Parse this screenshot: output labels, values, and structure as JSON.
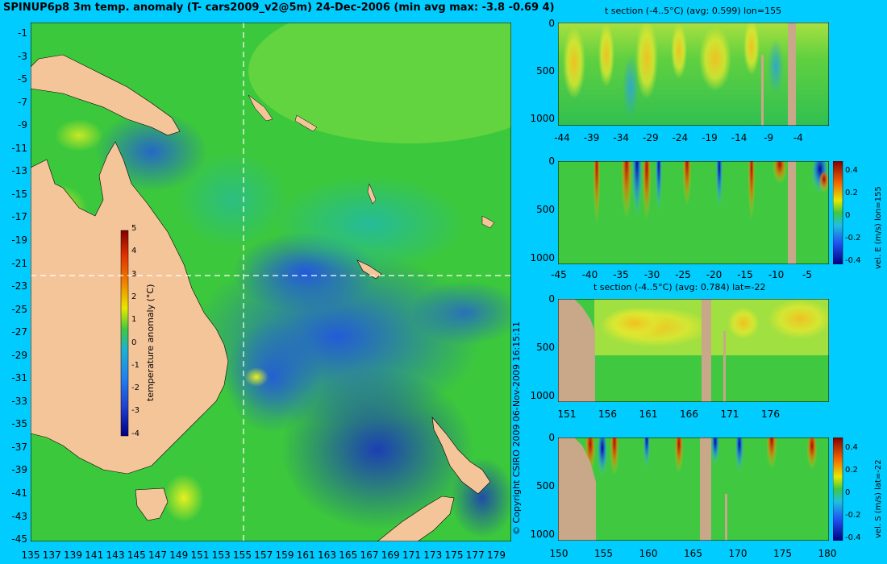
{
  "main_title": "SPINUP6p8 3m temp. anomaly (T- cars2009_v2@5m) 24-Dec-2006 (min avg max: -3.8 -0.69 4)",
  "copyright": "© Copyright CSIRO 2009   06-Nov-2009 16:15:11",
  "colors": {
    "background": "#00ccff",
    "land": "#f5c59a",
    "land_section": "#c8a888",
    "ocean_base": "#3cc83c"
  },
  "chart_data": [
    {
      "type": "heatmap",
      "panel": "map",
      "x_ticks": [
        "135",
        "137",
        "139",
        "141",
        "143",
        "145",
        "147",
        "149",
        "151",
        "153",
        "155",
        "157",
        "159",
        "161",
        "163",
        "165",
        "167",
        "169",
        "171",
        "173",
        "175",
        "177",
        "179"
      ],
      "y_ticks": [
        "-1",
        "-3",
        "-5",
        "-7",
        "-9",
        "-11",
        "-13",
        "-15",
        "-17",
        "-19",
        "-21",
        "-23",
        "-25",
        "-27",
        "-29",
        "-31",
        "-33",
        "-35",
        "-37",
        "-39",
        "-41",
        "-43",
        "-45"
      ],
      "xlim": [
        135,
        180
      ],
      "ylim": [
        -45,
        0
      ],
      "section_lon": 155,
      "section_lat": -22,
      "colorbar": {
        "label": "temperature anomaly (°C)",
        "ticks": [
          "5",
          "4",
          "3",
          "2",
          "1",
          "0",
          "-1",
          "-2",
          "-3",
          "-4"
        ],
        "range": [
          -4,
          5
        ]
      }
    },
    {
      "type": "heatmap",
      "panel": "t-section-lon",
      "title": "t section (-4..5°C) (avg: 0.599) lon=155",
      "x_ticks": [
        "-44",
        "-39",
        "-34",
        "-29",
        "-24",
        "-19",
        "-14",
        "-9",
        "-4"
      ],
      "y_ticks": [
        "0",
        "500",
        "1000"
      ]
    },
    {
      "type": "heatmap",
      "panel": "velE-section-lon",
      "x_ticks": [
        "-45",
        "-40",
        "-35",
        "-30",
        "-25",
        "-20",
        "-15",
        "-10",
        "-5"
      ],
      "y_ticks": [
        "0",
        "500",
        "1000"
      ],
      "colorbar": {
        "label": "vel. E (m/s) lon=155",
        "ticks": [
          "0.4",
          "0.2",
          "0",
          "-0.2",
          "-0.4"
        ]
      }
    },
    {
      "type": "heatmap",
      "panel": "t-section-lat",
      "title": "t section (-4..5°C) (avg: 0.784) lat=-22",
      "x_ticks": [
        "151",
        "156",
        "161",
        "166",
        "171",
        "176"
      ],
      "y_ticks": [
        "0",
        "500",
        "1000"
      ]
    },
    {
      "type": "heatmap",
      "panel": "velS-section-lat",
      "x_ticks": [
        "150",
        "155",
        "160",
        "165",
        "170",
        "175",
        "180"
      ],
      "y_ticks": [
        "0",
        "500",
        "1000"
      ],
      "colorbar": {
        "label": "vel. S (m/s) lat=-22",
        "ticks": [
          "0.4",
          "0.2",
          "0",
          "-0.2",
          "-0.4"
        ]
      }
    }
  ]
}
